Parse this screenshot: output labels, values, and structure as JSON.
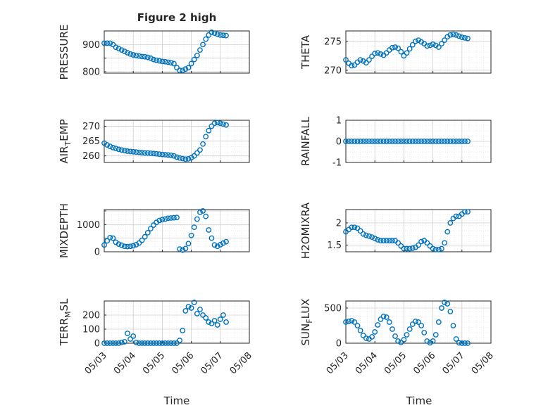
{
  "figure": {
    "title": "Figure 2 high",
    "xlabel": "Time"
  },
  "style": {
    "marker_color": "#0072BD",
    "grid_color": "#dfdfdf",
    "axis_color": "#262626"
  },
  "x_ticks": [
    "05/03",
    "05/04",
    "05/05",
    "05/06",
    "05/07",
    "05/08"
  ],
  "chart_data": [
    {
      "type": "scatter",
      "ylabel": "PRESSURE",
      "ylabel_sub": "",
      "ylabel_tail": "",
      "ylim": [
        795,
        950
      ],
      "yticks": [
        800,
        850,
        900
      ],
      "ytick_labels": [
        "800",
        "",
        "900"
      ],
      "y_extra_label": "",
      "xlim": [
        0,
        5
      ],
      "grid": "major+minor",
      "series": [
        {
          "x": [
            0.0,
            0.1,
            0.2,
            0.3,
            0.4,
            0.5,
            0.6,
            0.7,
            0.8,
            0.9,
            1.0,
            1.1,
            1.2,
            1.3,
            1.4,
            1.5,
            1.6,
            1.7,
            1.8,
            1.9,
            2.0,
            2.1,
            2.2,
            2.3,
            2.4,
            2.5,
            2.6,
            2.7,
            2.8,
            2.9,
            3.0,
            3.1,
            3.2,
            3.3,
            3.4,
            3.5,
            3.6,
            3.7,
            3.8,
            3.9,
            4.0,
            4.1,
            4.2
          ],
          "y": [
            905,
            905,
            905,
            900,
            890,
            885,
            880,
            875,
            870,
            865,
            862,
            860,
            858,
            856,
            855,
            853,
            850,
            845,
            842,
            840,
            838,
            837,
            835,
            833,
            830,
            815,
            805,
            805,
            810,
            815,
            830,
            845,
            860,
            880,
            900,
            920,
            935,
            945,
            942,
            938,
            935,
            934,
            933
          ]
        }
      ]
    },
    {
      "type": "scatter",
      "ylabel": "THETA",
      "ylabel_sub": "",
      "ylabel_tail": "",
      "ylim": [
        269.5,
        276.8
      ],
      "yticks": [
        270,
        275
      ],
      "ytick_labels": [
        "270",
        "275"
      ],
      "y_extra_label": "",
      "xlim": [
        0,
        5
      ],
      "grid": "major+minor",
      "series": [
        {
          "x": [
            0.0,
            0.1,
            0.2,
            0.3,
            0.4,
            0.5,
            0.6,
            0.7,
            0.8,
            0.9,
            1.0,
            1.1,
            1.2,
            1.3,
            1.4,
            1.5,
            1.6,
            1.7,
            1.8,
            1.9,
            2.0,
            2.1,
            2.2,
            2.3,
            2.4,
            2.5,
            2.6,
            2.7,
            2.8,
            2.9,
            3.0,
            3.1,
            3.2,
            3.3,
            3.4,
            3.5,
            3.6,
            3.7,
            3.8,
            3.9,
            4.0,
            4.1,
            4.2
          ],
          "y": [
            271.8,
            271.2,
            270.8,
            270.9,
            271.4,
            271.8,
            271.6,
            271.3,
            271.8,
            272.4,
            272.9,
            273.0,
            272.8,
            272.6,
            273.0,
            273.5,
            273.9,
            274.0,
            273.8,
            273.2,
            272.5,
            273.0,
            273.7,
            274.4,
            275.0,
            275.2,
            274.9,
            274.6,
            274.2,
            274.3,
            274.5,
            274.3,
            274.0,
            274.6,
            275.2,
            275.8,
            276.1,
            276.2,
            276.1,
            275.9,
            275.7,
            275.6,
            275.5
          ]
        }
      ]
    },
    {
      "type": "scatter",
      "ylabel": "AIR",
      "ylabel_sub": "T",
      "ylabel_tail": "EMP",
      "ylim": [
        257.8,
        272.0
      ],
      "yticks": [
        260,
        265,
        270
      ],
      "ytick_labels": [
        "260",
        "265",
        "270"
      ],
      "y_extra_label": "",
      "xlim": [
        0,
        5
      ],
      "grid": "major+minor",
      "series": [
        {
          "x": [
            0.0,
            0.1,
            0.2,
            0.3,
            0.4,
            0.5,
            0.6,
            0.7,
            0.8,
            0.9,
            1.0,
            1.1,
            1.2,
            1.3,
            1.4,
            1.5,
            1.6,
            1.7,
            1.8,
            1.9,
            2.0,
            2.1,
            2.2,
            2.3,
            2.4,
            2.5,
            2.6,
            2.7,
            2.8,
            2.9,
            3.0,
            3.1,
            3.2,
            3.3,
            3.4,
            3.5,
            3.6,
            3.7,
            3.8,
            3.9,
            4.0,
            4.1,
            4.2
          ],
          "y": [
            264.3,
            263.7,
            263.2,
            262.8,
            262.5,
            262.2,
            262.0,
            261.8,
            261.6,
            261.5,
            261.4,
            261.3,
            261.2,
            261.1,
            261.0,
            261.0,
            260.9,
            260.8,
            260.7,
            260.6,
            260.5,
            260.4,
            260.3,
            260.2,
            260.0,
            259.6,
            259.3,
            259.1,
            258.9,
            259.0,
            259.4,
            260.0,
            261.0,
            262.0,
            264.0,
            266.5,
            268.5,
            270.0,
            271.0,
            271.2,
            271.0,
            270.7,
            270.4
          ]
        }
      ]
    },
    {
      "type": "scatter",
      "ylabel": "RAINFALL",
      "ylabel_sub": "",
      "ylabel_tail": "",
      "ylim": [
        -1,
        1
      ],
      "yticks": [
        -1,
        0,
        1
      ],
      "ytick_labels": [
        "-1",
        "0",
        "1"
      ],
      "y_extra_label": "",
      "xlim": [
        0,
        5
      ],
      "grid": "major+minor",
      "series": [
        {
          "x": [
            0.0,
            0.1,
            0.2,
            0.3,
            0.4,
            0.5,
            0.6,
            0.7,
            0.8,
            0.9,
            1.0,
            1.1,
            1.2,
            1.3,
            1.4,
            1.5,
            1.6,
            1.7,
            1.8,
            1.9,
            2.0,
            2.1,
            2.2,
            2.3,
            2.4,
            2.5,
            2.6,
            2.7,
            2.8,
            2.9,
            3.0,
            3.1,
            3.2,
            3.3,
            3.4,
            3.5,
            3.6,
            3.7,
            3.8,
            3.9,
            4.0,
            4.1,
            4.2
          ],
          "y": [
            0,
            0,
            0,
            0,
            0,
            0,
            0,
            0,
            0,
            0,
            0,
            0,
            0,
            0,
            0,
            0,
            0,
            0,
            0,
            0,
            0,
            0,
            0,
            0,
            0,
            0,
            0,
            0,
            0,
            0,
            0,
            0,
            0,
            0,
            0,
            0,
            0,
            0,
            0,
            0,
            0,
            0,
            0
          ]
        }
      ]
    },
    {
      "type": "scatter",
      "ylabel": "MIXDEPTH",
      "ylabel_sub": "",
      "ylabel_tail": "",
      "ylim": [
        0,
        1550
      ],
      "yticks": [
        0,
        500,
        1000,
        1500
      ],
      "ytick_labels": [
        "0",
        "",
        "1000",
        ""
      ],
      "y_extra_label": "",
      "xlim": [
        0,
        5
      ],
      "grid": "major+minor",
      "series": [
        {
          "x": [
            0.0,
            0.1,
            0.2,
            0.3,
            0.4,
            0.5,
            0.6,
            0.7,
            0.8,
            0.9,
            1.0,
            1.1,
            1.2,
            1.3,
            1.4,
            1.5,
            1.6,
            1.7,
            1.8,
            1.9,
            2.0,
            2.1,
            2.2,
            2.3,
            2.4,
            2.5,
            2.6,
            2.7,
            2.8,
            2.9,
            3.0,
            3.1,
            3.2,
            3.3,
            3.4,
            3.5,
            3.6,
            3.7,
            3.8,
            3.9,
            4.0,
            4.1,
            4.2
          ],
          "y": [
            250,
            400,
            520,
            500,
            350,
            280,
            240,
            200,
            190,
            200,
            220,
            260,
            320,
            420,
            550,
            700,
            850,
            980,
            1080,
            1150,
            1180,
            1200,
            1230,
            1240,
            1250,
            1260,
            100,
            60,
            120,
            300,
            600,
            900,
            1200,
            1450,
            1500,
            1300,
            800,
            500,
            250,
            200,
            260,
            320,
            370
          ]
        }
      ]
    },
    {
      "type": "scatter",
      "ylabel": "H2OMIXRA",
      "ylabel_sub": "",
      "ylabel_tail": "",
      "ylim": [
        1.35,
        2.3
      ],
      "yticks": [
        1.5,
        2
      ],
      "ytick_labels": [
        "1.5",
        "2"
      ],
      "y_extra_label": "",
      "xlim": [
        0,
        5
      ],
      "grid": "major+minor",
      "series": [
        {
          "x": [
            0.0,
            0.1,
            0.2,
            0.3,
            0.4,
            0.5,
            0.6,
            0.7,
            0.8,
            0.9,
            1.0,
            1.1,
            1.2,
            1.3,
            1.4,
            1.5,
            1.6,
            1.7,
            1.8,
            1.9,
            2.0,
            2.1,
            2.2,
            2.3,
            2.4,
            2.5,
            2.6,
            2.7,
            2.8,
            2.9,
            3.0,
            3.1,
            3.2,
            3.3,
            3.4,
            3.5,
            3.6,
            3.7,
            3.8,
            3.9,
            4.0,
            4.1,
            4.2
          ],
          "y": [
            1.8,
            1.85,
            1.9,
            1.9,
            1.88,
            1.82,
            1.75,
            1.72,
            1.7,
            1.68,
            1.65,
            1.62,
            1.6,
            1.6,
            1.6,
            1.6,
            1.6,
            1.6,
            1.55,
            1.48,
            1.42,
            1.42,
            1.42,
            1.43,
            1.45,
            1.5,
            1.58,
            1.6,
            1.55,
            1.48,
            1.42,
            1.4,
            1.4,
            1.42,
            1.55,
            1.8,
            2.0,
            2.1,
            2.15,
            2.15,
            2.2,
            2.25,
            2.25
          ]
        }
      ]
    },
    {
      "type": "scatter",
      "ylabel": "TERR",
      "ylabel_sub": "M",
      "ylabel_tail": "SL",
      "ylim": [
        0,
        300
      ],
      "yticks": [
        0,
        100,
        200
      ],
      "ytick_labels": [
        "0",
        "100",
        "200"
      ],
      "y_extra_label": "",
      "xlim": [
        0,
        5
      ],
      "grid": "major+minor",
      "series": [
        {
          "x": [
            0.0,
            0.1,
            0.2,
            0.3,
            0.4,
            0.5,
            0.6,
            0.7,
            0.8,
            0.9,
            1.0,
            1.1,
            1.2,
            1.3,
            1.4,
            1.5,
            1.6,
            1.7,
            1.8,
            1.9,
            2.0,
            2.1,
            2.2,
            2.3,
            2.4,
            2.5,
            2.6,
            2.7,
            2.8,
            2.9,
            3.0,
            3.1,
            3.2,
            3.3,
            3.4,
            3.5,
            3.6,
            3.7,
            3.8,
            3.9,
            4.0,
            4.1,
            4.2
          ],
          "y": [
            0,
            0,
            0,
            0,
            0,
            0,
            5,
            10,
            70,
            30,
            50,
            5,
            0,
            0,
            0,
            0,
            0,
            0,
            0,
            0,
            0,
            0,
            0,
            0,
            0,
            0,
            20,
            90,
            230,
            260,
            250,
            290,
            210,
            240,
            200,
            180,
            150,
            140,
            160,
            130,
            170,
            200,
            150
          ]
        }
      ]
    },
    {
      "type": "scatter",
      "ylabel": "SUN",
      "ylabel_sub": "F",
      "ylabel_tail": "LUX",
      "ylim": [
        0,
        600
      ],
      "yticks": [
        0,
        500
      ],
      "ytick_labels": [
        "0",
        "500"
      ],
      "y_extra_label": "",
      "xlim": [
        0,
        5
      ],
      "grid": "major+minor",
      "series": [
        {
          "x": [
            0.0,
            0.1,
            0.2,
            0.3,
            0.4,
            0.5,
            0.6,
            0.7,
            0.8,
            0.9,
            1.0,
            1.1,
            1.2,
            1.3,
            1.4,
            1.5,
            1.6,
            1.7,
            1.8,
            1.9,
            2.0,
            2.1,
            2.2,
            2.3,
            2.4,
            2.5,
            2.6,
            2.7,
            2.8,
            2.9,
            3.0,
            3.1,
            3.2,
            3.3,
            3.4,
            3.5,
            3.6,
            3.7,
            3.8,
            3.9,
            4.0,
            4.1,
            4.2
          ],
          "y": [
            300,
            310,
            320,
            300,
            250,
            180,
            110,
            70,
            60,
            90,
            160,
            260,
            340,
            380,
            370,
            300,
            200,
            100,
            30,
            10,
            50,
            120,
            200,
            270,
            310,
            300,
            250,
            150,
            30,
            5,
            30,
            120,
            300,
            500,
            580,
            560,
            450,
            250,
            60,
            5,
            0,
            0,
            0
          ]
        }
      ]
    }
  ]
}
